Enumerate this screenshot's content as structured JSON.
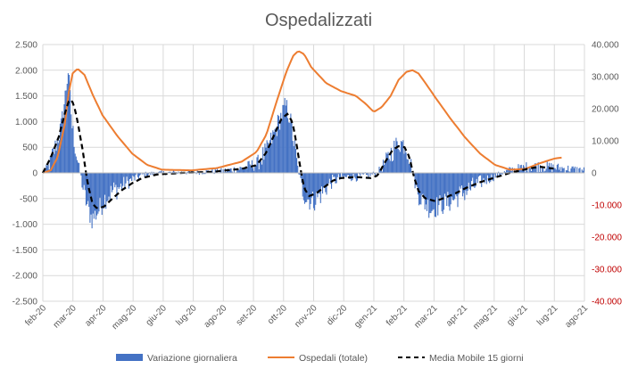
{
  "chart_data": {
    "type": "bar+line",
    "title": "Ospedalizzati",
    "xlabel": "",
    "ylabel": "",
    "months": [
      "feb-20",
      "mar-20",
      "apr-20",
      "mag-20",
      "giu-20",
      "lug-20",
      "ago-20",
      "set-20",
      "ott-20",
      "nov-20",
      "dic-20",
      "gen-21",
      "feb-21",
      "mar-21",
      "apr-21",
      "mag-21",
      "giu-21",
      "lug-21",
      "ago-21"
    ],
    "y_left": {
      "ylim": [
        -2500,
        2500
      ],
      "ticks": [
        "-2.500",
        "-2.000",
        "-1.500",
        "-1.000",
        "-500",
        "0",
        "500",
        "1.000",
        "1.500",
        "2.000",
        "2.500"
      ]
    },
    "y_right": {
      "ylim": [
        -40000,
        40000
      ],
      "ticks": [
        "-40.000",
        "-30.000",
        "-20.000",
        "-10.000",
        "0",
        "10.000",
        "20.000",
        "30.000",
        "40.000"
      ]
    },
    "grid": true,
    "legend_position": "bottom",
    "colors": {
      "bars": "#4472c4",
      "line": "#ed7d31",
      "ma": "#000000",
      "negative_ticks": "#c00000",
      "grid": "#d9d9d9"
    },
    "series": [
      {
        "name": "Variazione giornaliera",
        "axis": "left",
        "type": "bar",
        "keypoints": [
          [
            0,
            0
          ],
          [
            6,
            150
          ],
          [
            12,
            500
          ],
          [
            18,
            900
          ],
          [
            22,
            1500
          ],
          [
            25,
            2000
          ],
          [
            29,
            900
          ],
          [
            33,
            400
          ],
          [
            37,
            0
          ],
          [
            41,
            -400
          ],
          [
            45,
            -700
          ],
          [
            49,
            -900
          ],
          [
            55,
            -750
          ],
          [
            62,
            -500
          ],
          [
            70,
            -350
          ],
          [
            80,
            -250
          ],
          [
            90,
            -120
          ],
          [
            100,
            -40
          ],
          [
            115,
            0
          ],
          [
            140,
            10
          ],
          [
            160,
            20
          ],
          [
            180,
            35
          ],
          [
            200,
            90
          ],
          [
            215,
            180
          ],
          [
            225,
            420
          ],
          [
            233,
            800
          ],
          [
            239,
            1100
          ],
          [
            244,
            1300
          ],
          [
            248,
            1100
          ],
          [
            252,
            600
          ],
          [
            256,
            100
          ],
          [
            260,
            -300
          ],
          [
            265,
            -500
          ],
          [
            272,
            -550
          ],
          [
            280,
            -400
          ],
          [
            288,
            -200
          ],
          [
            296,
            -120
          ],
          [
            306,
            -80
          ],
          [
            316,
            -80
          ],
          [
            326,
            -60
          ],
          [
            336,
            0
          ],
          [
            344,
            200
          ],
          [
            352,
            450
          ],
          [
            358,
            600
          ],
          [
            364,
            550
          ],
          [
            368,
            350
          ],
          [
            372,
            0
          ],
          [
            376,
            -350
          ],
          [
            382,
            -550
          ],
          [
            390,
            -700
          ],
          [
            400,
            -620
          ],
          [
            410,
            -550
          ],
          [
            420,
            -420
          ],
          [
            430,
            -300
          ],
          [
            440,
            -180
          ],
          [
            455,
            -60
          ],
          [
            470,
            60
          ],
          [
            488,
            120
          ],
          [
            500,
            130
          ],
          [
            545,
            50
          ]
        ],
        "noise": 220
      },
      {
        "name": "Ospedali (totale)",
        "axis": "right",
        "type": "line",
        "keypoints": [
          [
            0,
            0
          ],
          [
            8,
            800
          ],
          [
            15,
            5000
          ],
          [
            22,
            15000
          ],
          [
            26,
            25000
          ],
          [
            30,
            31000
          ],
          [
            35,
            32500
          ],
          [
            42,
            30500
          ],
          [
            50,
            24500
          ],
          [
            60,
            18000
          ],
          [
            75,
            11500
          ],
          [
            90,
            6000
          ],
          [
            105,
            2500
          ],
          [
            120,
            1000
          ],
          [
            150,
            800
          ],
          [
            175,
            1500
          ],
          [
            200,
            3500
          ],
          [
            215,
            6500
          ],
          [
            225,
            12000
          ],
          [
            235,
            22000
          ],
          [
            245,
            31500
          ],
          [
            252,
            36500
          ],
          [
            257,
            38000
          ],
          [
            263,
            37000
          ],
          [
            270,
            33000
          ],
          [
            285,
            28000
          ],
          [
            300,
            25500
          ],
          [
            315,
            24000
          ],
          [
            325,
            21500
          ],
          [
            333,
            19000
          ],
          [
            341,
            20500
          ],
          [
            350,
            24000
          ],
          [
            358,
            29000
          ],
          [
            366,
            31500
          ],
          [
            372,
            32000
          ],
          [
            378,
            31000
          ],
          [
            385,
            28000
          ],
          [
            395,
            23500
          ],
          [
            410,
            17000
          ],
          [
            425,
            11000
          ],
          [
            440,
            6000
          ],
          [
            455,
            2500
          ],
          [
            470,
            1000
          ],
          [
            485,
            1200
          ],
          [
            500,
            3000
          ],
          [
            515,
            4500
          ],
          [
            523,
            4800
          ]
        ]
      },
      {
        "name": "Media Mobile 15 giorni",
        "axis": "left",
        "type": "line",
        "keypoints": [
          [
            0,
            0
          ],
          [
            8,
            300
          ],
          [
            16,
            700
          ],
          [
            22,
            1150
          ],
          [
            27,
            1450
          ],
          [
            31,
            1350
          ],
          [
            35,
            1000
          ],
          [
            40,
            450
          ],
          [
            45,
            -200
          ],
          [
            50,
            -600
          ],
          [
            55,
            -700
          ],
          [
            62,
            -650
          ],
          [
            70,
            -500
          ],
          [
            80,
            -330
          ],
          [
            90,
            -200
          ],
          [
            100,
            -100
          ],
          [
            115,
            -30
          ],
          [
            140,
            0
          ],
          [
            170,
            20
          ],
          [
            200,
            80
          ],
          [
            215,
            150
          ],
          [
            225,
            400
          ],
          [
            233,
            750
          ],
          [
            240,
            1050
          ],
          [
            246,
            1150
          ],
          [
            251,
            1000
          ],
          [
            255,
            600
          ],
          [
            259,
            100
          ],
          [
            263,
            -300
          ],
          [
            268,
            -450
          ],
          [
            275,
            -400
          ],
          [
            283,
            -280
          ],
          [
            292,
            -150
          ],
          [
            300,
            -100
          ],
          [
            315,
            -80
          ],
          [
            330,
            -100
          ],
          [
            337,
            -50
          ],
          [
            344,
            200
          ],
          [
            352,
            450
          ],
          [
            358,
            520
          ],
          [
            364,
            500
          ],
          [
            369,
            300
          ],
          [
            373,
            -50
          ],
          [
            378,
            -350
          ],
          [
            385,
            -500
          ],
          [
            395,
            -550
          ],
          [
            405,
            -480
          ],
          [
            415,
            -400
          ],
          [
            425,
            -300
          ],
          [
            440,
            -180
          ],
          [
            455,
            -90
          ],
          [
            470,
            0
          ],
          [
            488,
            80
          ],
          [
            500,
            120
          ],
          [
            515,
            80
          ]
        ]
      }
    ]
  }
}
